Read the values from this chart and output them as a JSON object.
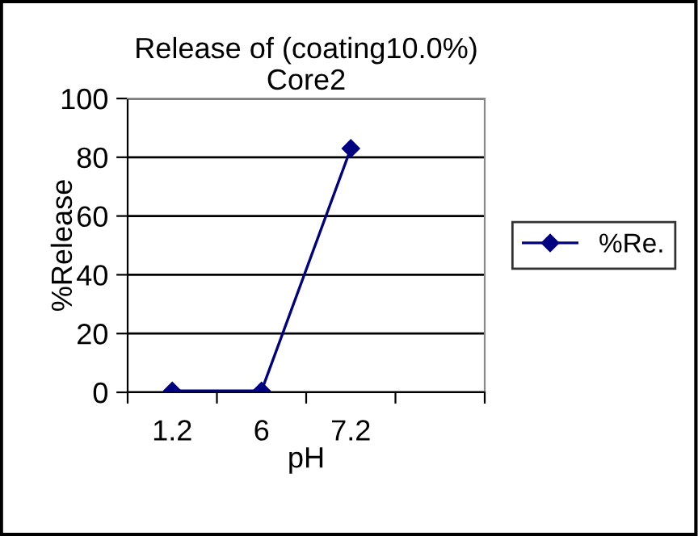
{
  "chart_data": {
    "type": "line",
    "title": "Release of (coating10.0%)\nCore2",
    "xlabel": "pH",
    "ylabel": "%Release",
    "categories": [
      "1.2",
      "6",
      "7.2",
      null
    ],
    "series": [
      {
        "name": "%Re.",
        "color": "#000080",
        "values": [
          0.5,
          0.5,
          83,
          null
        ]
      }
    ],
    "ylim": [
      0,
      100
    ],
    "yticks": [
      0,
      20,
      40,
      60,
      80,
      100
    ],
    "grid": "y",
    "legend": "right",
    "marker": "diamond",
    "line_style": "solid"
  }
}
